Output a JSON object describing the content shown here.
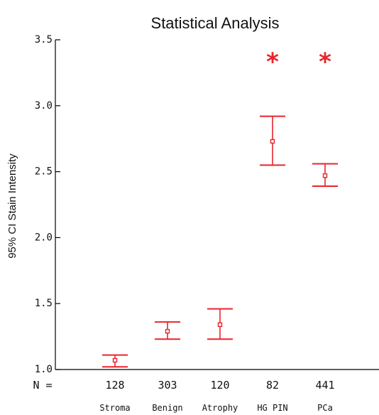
{
  "chart_data": {
    "type": "errorbar",
    "title": "Statistical Analysis",
    "ylabel": "95% CI Stain Intensity",
    "xlabel": "",
    "ylim": [
      1.0,
      3.5
    ],
    "yticks": [
      1.0,
      1.5,
      2.0,
      2.5,
      3.0,
      3.5
    ],
    "ytick_labels": [
      "1.0",
      "1.5",
      "2.0",
      "2.5",
      "3.0",
      "3.5"
    ],
    "n_label": "N =",
    "categories": [
      "Stroma",
      "Benign",
      "Atrophy",
      "HG PIN",
      "PCa"
    ],
    "n": [
      "128",
      "303",
      "120",
      "82",
      "441"
    ],
    "means": [
      1.07,
      1.29,
      1.34,
      2.73,
      2.47
    ],
    "ci_lower": [
      1.02,
      1.23,
      1.23,
      2.55,
      2.39
    ],
    "ci_upper": [
      1.11,
      1.36,
      1.46,
      2.92,
      2.56
    ],
    "significant": [
      false,
      false,
      false,
      true,
      true
    ],
    "significance_marker": "*",
    "color": "#e8242c",
    "grid": false
  }
}
